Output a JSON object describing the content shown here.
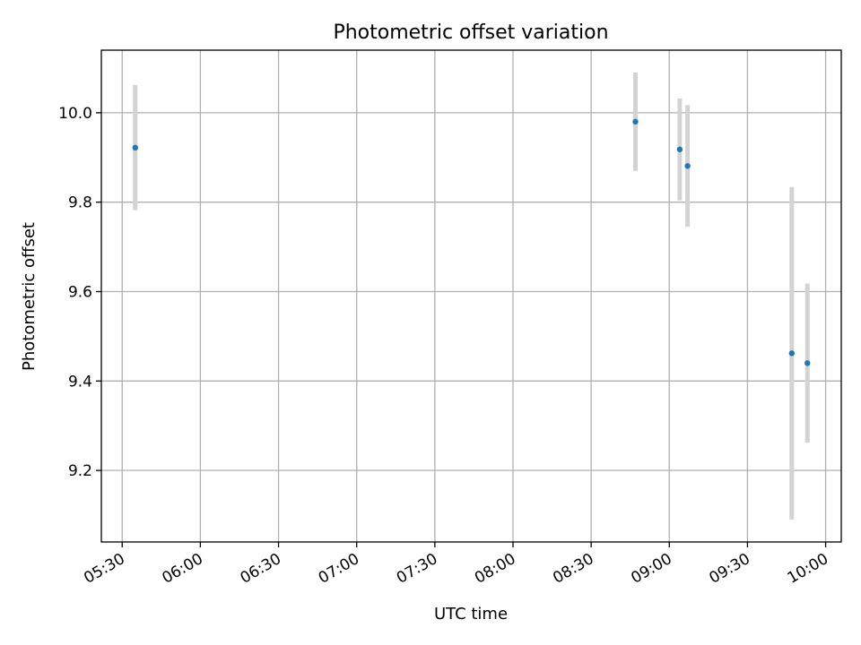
{
  "chart_data": {
    "type": "scatter",
    "title": "Photometric offset variation",
    "xlabel": "UTC time",
    "ylabel": "Photometric offset",
    "x_axis_kind": "time",
    "xlim": [
      "05:22",
      "10:06"
    ],
    "ylim": [
      9.04,
      10.14
    ],
    "x_ticks": [
      "05:30",
      "06:00",
      "06:30",
      "07:00",
      "07:30",
      "08:00",
      "08:30",
      "09:00",
      "09:30",
      "10:00"
    ],
    "y_ticks": [
      9.2,
      9.4,
      9.6,
      9.8,
      10.0
    ],
    "y_tick_labels": [
      "9.2",
      "9.4",
      "9.6",
      "9.8",
      "10.0"
    ],
    "grid": true,
    "point_color": "#1f77b4",
    "errorbar_color": "#d3d3d3",
    "points": [
      {
        "x": "05:35",
        "y": 9.922,
        "err": 0.14
      },
      {
        "x": "08:47",
        "y": 9.98,
        "err": 0.11
      },
      {
        "x": "09:04",
        "y": 9.918,
        "err": 0.114
      },
      {
        "x": "09:07",
        "y": 9.881,
        "err": 0.136
      },
      {
        "x": "09:47",
        "y": 9.462,
        "err": 0.372
      },
      {
        "x": "09:53",
        "y": 9.44,
        "err": 0.178
      }
    ]
  }
}
